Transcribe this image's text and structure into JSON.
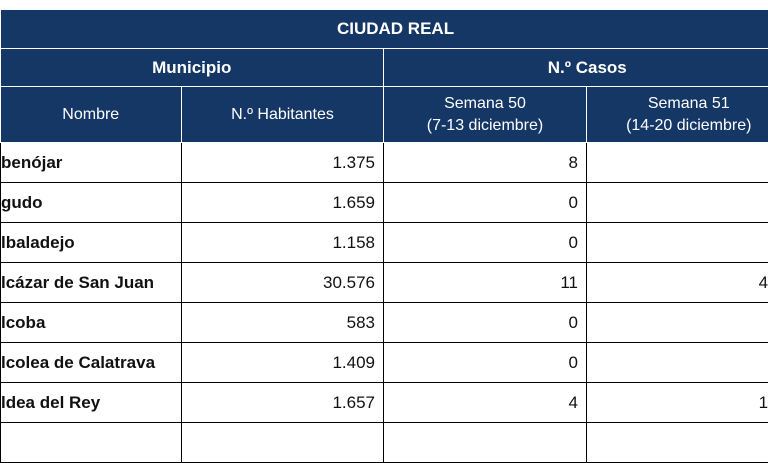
{
  "table": {
    "title": "CIUDAD REAL",
    "group_municipio": "Municipio",
    "group_casos": "N.º Casos",
    "col_nombre": "Nombre",
    "col_habitantes": "N.º Habitantes",
    "col_sem50_line1": "Semana 50",
    "col_sem50_line2": "(7-13 diciembre)",
    "col_sem51_line1": "Semana 51",
    "col_sem51_line2": "(14-20 diciembre)",
    "rows": [
      {
        "nombre": "benójar",
        "habitantes": "1.375",
        "sem50": "8",
        "sem51": ""
      },
      {
        "nombre": "gudo",
        "habitantes": "1.659",
        "sem50": "0",
        "sem51": ""
      },
      {
        "nombre": "lbaladejo",
        "habitantes": "1.158",
        "sem50": "0",
        "sem51": ""
      },
      {
        "nombre": "lcázar de San Juan",
        "habitantes": "30.576",
        "sem50": "11",
        "sem51": "4"
      },
      {
        "nombre": "lcoba",
        "habitantes": "583",
        "sem50": "0",
        "sem51": ""
      },
      {
        "nombre": "lcolea de Calatrava",
        "habitantes": "1.409",
        "sem50": "0",
        "sem51": ""
      },
      {
        "nombre": "ldea del Rey",
        "habitantes": "1.657",
        "sem50": "4",
        "sem51": "1"
      },
      {
        "nombre": "",
        "habitantes": "",
        "sem50": "",
        "sem51": ""
      }
    ]
  }
}
